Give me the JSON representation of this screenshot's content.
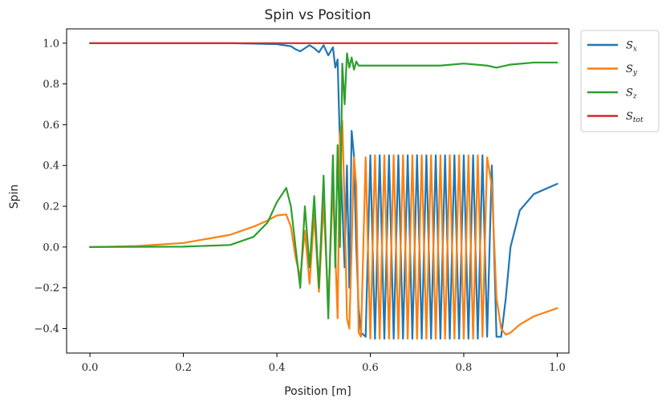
{
  "chart_data": {
    "type": "line",
    "title": "Spin vs Position",
    "xlabel": "Position [m]",
    "ylabel": "Spin",
    "xlim": [
      -0.05,
      1.025
    ],
    "ylim": [
      -0.52,
      1.07
    ],
    "xticks": [
      0.0,
      0.2,
      0.4,
      0.6,
      0.8,
      1.0
    ],
    "yticks": [
      -0.4,
      -0.2,
      0.0,
      0.2,
      0.4,
      0.6,
      0.8,
      1.0
    ],
    "xtick_labels": [
      "0.0",
      "0.2",
      "0.4",
      "0.6",
      "0.8",
      "1.0"
    ],
    "ytick_labels": [
      "−0.4",
      "−0.2",
      "0.0",
      "0.2",
      "0.4",
      "0.6",
      "0.8",
      "1.0"
    ],
    "grid": false,
    "legend_position": "outside-top-right",
    "series": [
      {
        "name": "S",
        "sub": "x",
        "color": "#1f77b4",
        "points": [
          [
            0.0,
            1.0
          ],
          [
            0.3,
            1.0
          ],
          [
            0.4,
            0.995
          ],
          [
            0.43,
            0.985
          ],
          [
            0.44,
            0.97
          ],
          [
            0.45,
            0.96
          ],
          [
            0.46,
            0.975
          ],
          [
            0.47,
            0.99
          ],
          [
            0.48,
            0.975
          ],
          [
            0.49,
            0.955
          ],
          [
            0.5,
            0.99
          ],
          [
            0.51,
            0.94
          ],
          [
            0.52,
            0.98
          ],
          [
            0.525,
            0.88
          ],
          [
            0.53,
            0.92
          ],
          [
            0.535,
            0.5
          ],
          [
            0.54,
            0.2
          ],
          [
            0.545,
            -0.1
          ],
          [
            0.55,
            0.4
          ],
          [
            0.555,
            -0.2
          ],
          [
            0.56,
            0.57
          ],
          [
            0.565,
            0.45
          ],
          [
            0.57,
            0.0
          ],
          [
            0.575,
            -0.3
          ],
          [
            0.58,
            -0.42
          ],
          [
            0.59,
            -0.44
          ],
          [
            0.6,
            0.45
          ],
          [
            0.61,
            -0.45
          ],
          [
            0.62,
            0.45
          ],
          [
            0.63,
            -0.45
          ],
          [
            0.64,
            0.45
          ],
          [
            0.65,
            -0.45
          ],
          [
            0.66,
            0.45
          ],
          [
            0.67,
            -0.45
          ],
          [
            0.68,
            0.45
          ],
          [
            0.69,
            -0.45
          ],
          [
            0.7,
            0.45
          ],
          [
            0.71,
            -0.45
          ],
          [
            0.72,
            0.45
          ],
          [
            0.73,
            -0.45
          ],
          [
            0.74,
            0.45
          ],
          [
            0.75,
            -0.45
          ],
          [
            0.76,
            0.45
          ],
          [
            0.77,
            -0.45
          ],
          [
            0.78,
            0.45
          ],
          [
            0.79,
            -0.45
          ],
          [
            0.8,
            0.45
          ],
          [
            0.81,
            -0.45
          ],
          [
            0.82,
            0.45
          ],
          [
            0.83,
            -0.45
          ],
          [
            0.84,
            0.45
          ],
          [
            0.85,
            -0.44
          ],
          [
            0.86,
            0.4
          ],
          [
            0.87,
            -0.44
          ],
          [
            0.88,
            -0.44
          ],
          [
            0.89,
            -0.25
          ],
          [
            0.9,
            0.0
          ],
          [
            0.92,
            0.18
          ],
          [
            0.95,
            0.26
          ],
          [
            1.0,
            0.31
          ]
        ]
      },
      {
        "name": "S",
        "sub": "y",
        "color": "#ff7f0e",
        "points": [
          [
            0.0,
            0.0
          ],
          [
            0.1,
            0.005
          ],
          [
            0.2,
            0.02
          ],
          [
            0.3,
            0.06
          ],
          [
            0.35,
            0.1
          ],
          [
            0.38,
            0.13
          ],
          [
            0.4,
            0.155
          ],
          [
            0.42,
            0.16
          ],
          [
            0.43,
            0.1
          ],
          [
            0.44,
            -0.05
          ],
          [
            0.45,
            -0.15
          ],
          [
            0.46,
            0.08
          ],
          [
            0.47,
            -0.18
          ],
          [
            0.48,
            0.16
          ],
          [
            0.49,
            -0.22
          ],
          [
            0.5,
            0.22
          ],
          [
            0.51,
            -0.28
          ],
          [
            0.52,
            0.3
          ],
          [
            0.53,
            -0.35
          ],
          [
            0.535,
            0.55
          ],
          [
            0.54,
            0.62
          ],
          [
            0.545,
            0.2
          ],
          [
            0.55,
            -0.35
          ],
          [
            0.555,
            -0.4
          ],
          [
            0.56,
            0.0
          ],
          [
            0.565,
            0.44
          ],
          [
            0.57,
            0.3
          ],
          [
            0.575,
            -0.42
          ],
          [
            0.58,
            -0.44
          ],
          [
            0.59,
            0.44
          ],
          [
            0.6,
            -0.45
          ],
          [
            0.61,
            0.45
          ],
          [
            0.62,
            -0.45
          ],
          [
            0.63,
            0.45
          ],
          [
            0.64,
            -0.45
          ],
          [
            0.65,
            0.45
          ],
          [
            0.66,
            -0.45
          ],
          [
            0.67,
            0.45
          ],
          [
            0.68,
            -0.45
          ],
          [
            0.69,
            0.45
          ],
          [
            0.7,
            -0.45
          ],
          [
            0.71,
            0.45
          ],
          [
            0.72,
            -0.45
          ],
          [
            0.73,
            0.45
          ],
          [
            0.74,
            -0.45
          ],
          [
            0.75,
            0.45
          ],
          [
            0.76,
            -0.45
          ],
          [
            0.77,
            0.45
          ],
          [
            0.78,
            -0.45
          ],
          [
            0.79,
            0.45
          ],
          [
            0.8,
            -0.45
          ],
          [
            0.81,
            0.45
          ],
          [
            0.82,
            -0.45
          ],
          [
            0.83,
            0.45
          ],
          [
            0.84,
            -0.44
          ],
          [
            0.85,
            0.44
          ],
          [
            0.86,
            0.3
          ],
          [
            0.87,
            -0.25
          ],
          [
            0.88,
            -0.4
          ],
          [
            0.89,
            -0.43
          ],
          [
            0.9,
            -0.42
          ],
          [
            0.92,
            -0.38
          ],
          [
            0.95,
            -0.34
          ],
          [
            1.0,
            -0.3
          ]
        ]
      },
      {
        "name": "S",
        "sub": "z",
        "color": "#2ca02c",
        "points": [
          [
            0.0,
            0.0
          ],
          [
            0.2,
            0.002
          ],
          [
            0.3,
            0.01
          ],
          [
            0.35,
            0.05
          ],
          [
            0.38,
            0.12
          ],
          [
            0.4,
            0.22
          ],
          [
            0.42,
            0.29
          ],
          [
            0.43,
            0.2
          ],
          [
            0.44,
            0.0
          ],
          [
            0.45,
            -0.2
          ],
          [
            0.46,
            0.2
          ],
          [
            0.47,
            -0.1
          ],
          [
            0.48,
            0.25
          ],
          [
            0.49,
            -0.2
          ],
          [
            0.5,
            0.35
          ],
          [
            0.51,
            -0.35
          ],
          [
            0.52,
            0.45
          ],
          [
            0.525,
            -0.1
          ],
          [
            0.53,
            0.5
          ],
          [
            0.535,
            0.0
          ],
          [
            0.54,
            0.9
          ],
          [
            0.545,
            0.7
          ],
          [
            0.55,
            0.95
          ],
          [
            0.555,
            0.88
          ],
          [
            0.56,
            0.93
          ],
          [
            0.565,
            0.87
          ],
          [
            0.57,
            0.91
          ],
          [
            0.575,
            0.89
          ],
          [
            0.6,
            0.89
          ],
          [
            0.65,
            0.89
          ],
          [
            0.7,
            0.89
          ],
          [
            0.75,
            0.89
          ],
          [
            0.8,
            0.9
          ],
          [
            0.85,
            0.89
          ],
          [
            0.87,
            0.88
          ],
          [
            0.9,
            0.895
          ],
          [
            0.95,
            0.905
          ],
          [
            1.0,
            0.905
          ]
        ]
      },
      {
        "name": "S",
        "sub": "tot",
        "color": "#d62728",
        "points": [
          [
            0.0,
            1.0
          ],
          [
            1.0,
            1.0
          ]
        ]
      }
    ]
  }
}
